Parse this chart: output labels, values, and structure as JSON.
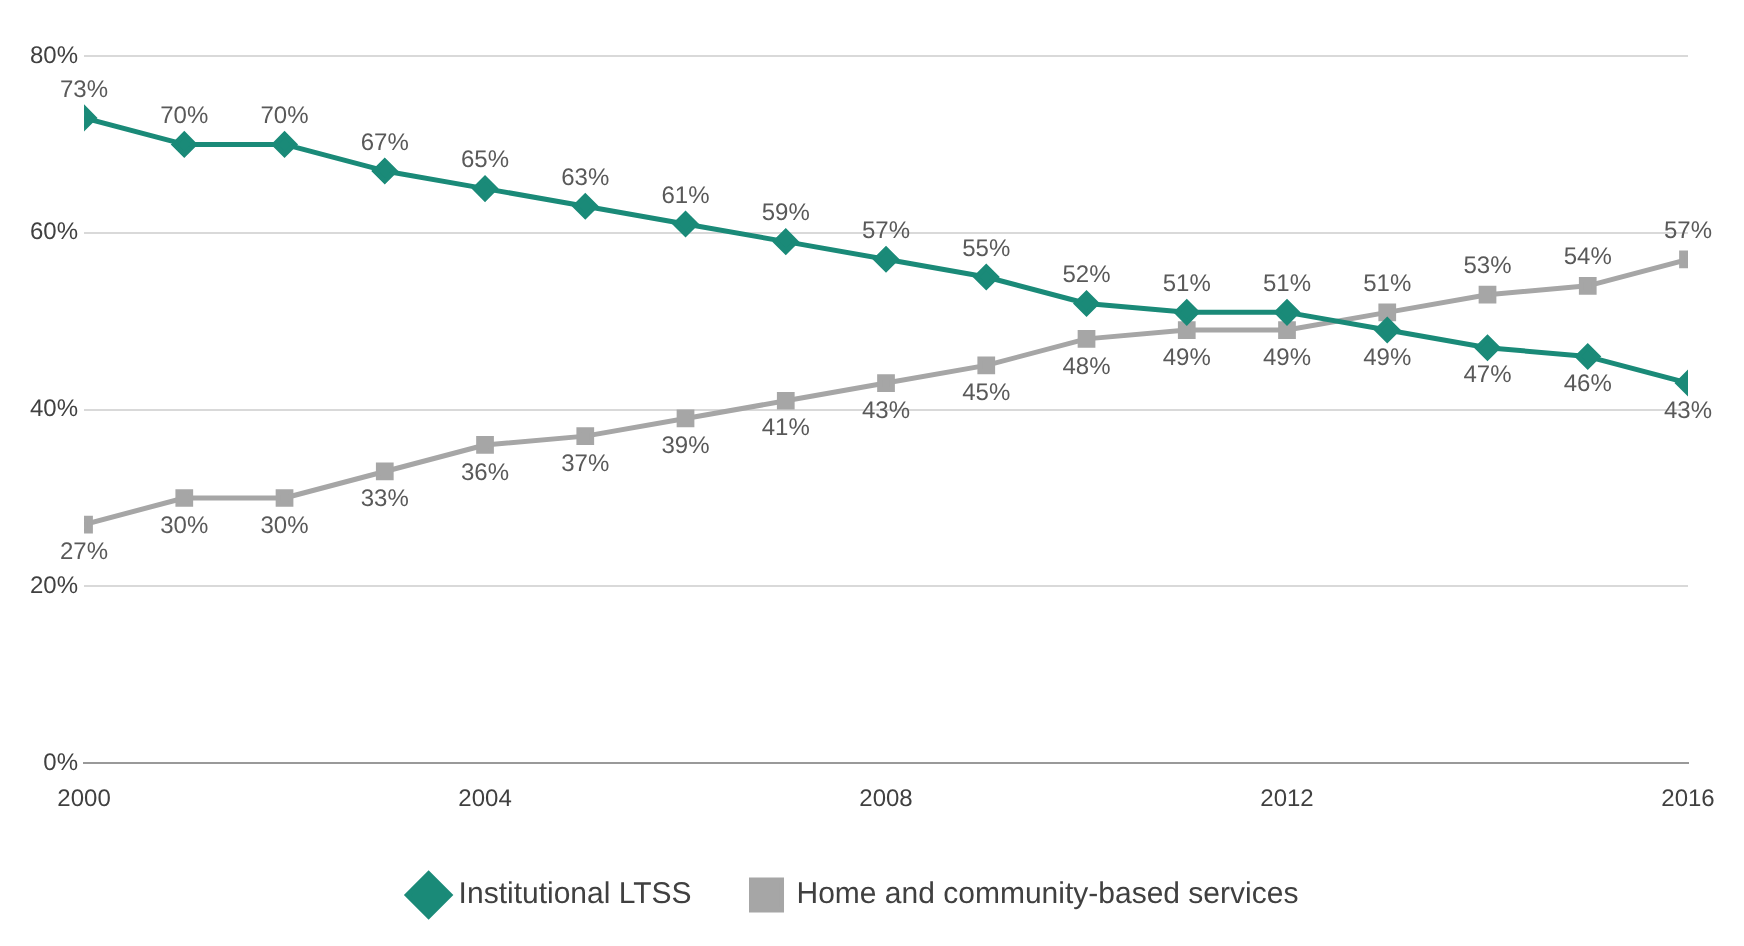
{
  "chart_data": {
    "type": "line",
    "x": [
      2000,
      2001,
      2002,
      2003,
      2004,
      2005,
      2006,
      2007,
      2008,
      2009,
      2010,
      2011,
      2012,
      2013,
      2014,
      2015,
      2016
    ],
    "series": [
      {
        "name": "Institutional LTSS",
        "color": "#1a8a78",
        "marker": "diamond",
        "values": [
          73,
          70,
          70,
          67,
          65,
          63,
          61,
          59,
          57,
          55,
          52,
          51,
          51,
          49,
          47,
          46,
          43
        ],
        "value_labels": [
          "73%",
          "70%",
          "70%",
          "67%",
          "65%",
          "63%",
          "61%",
          "59%",
          "57%",
          "55%",
          "52%",
          "51%",
          "51%",
          "49%",
          "47%",
          "46%",
          "43%"
        ]
      },
      {
        "name": "Home and community-based services",
        "color": "#a6a6a6",
        "marker": "square",
        "values": [
          27,
          30,
          30,
          33,
          36,
          37,
          39,
          41,
          43,
          45,
          48,
          49,
          49,
          51,
          53,
          54,
          57
        ],
        "value_labels": [
          "27%",
          "30%",
          "30%",
          "33%",
          "36%",
          "37%",
          "39%",
          "41%",
          "43%",
          "45%",
          "48%",
          "49%",
          "49%",
          "51%",
          "53%",
          "54%",
          "57%"
        ]
      }
    ],
    "xlim": [
      2000,
      2016
    ],
    "xticks": [
      2000,
      2004,
      2008,
      2012,
      2016
    ],
    "ylim": [
      0,
      80
    ],
    "yticks": [
      {
        "value": 0,
        "label": "0%"
      },
      {
        "value": 20,
        "label": "20%"
      },
      {
        "value": 40,
        "label": "40%"
      },
      {
        "value": 60,
        "label": "60%"
      },
      {
        "value": 80,
        "label": "80%"
      }
    ],
    "grid": "y",
    "legend": "bottom",
    "line_style": "solid"
  }
}
